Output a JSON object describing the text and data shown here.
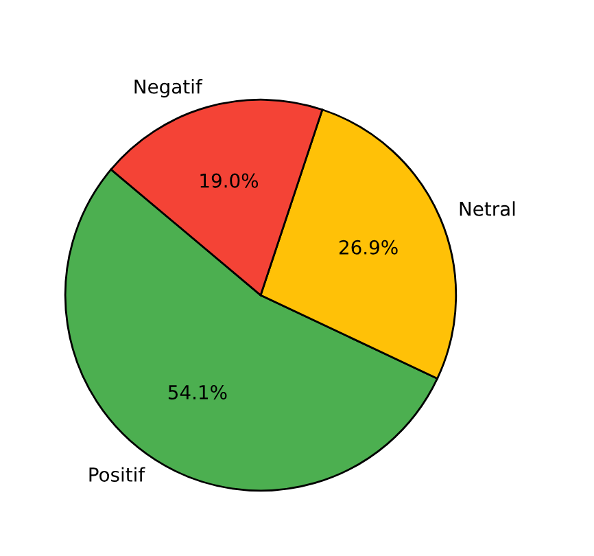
{
  "chart_data": {
    "type": "pie",
    "categories": [
      "Positif",
      "Netral",
      "Negatif"
    ],
    "values": [
      54.1,
      26.9,
      19.0
    ],
    "colors": [
      "#4caf50",
      "#ffc107",
      "#f44336"
    ],
    "value_labels": [
      "54.1%",
      "26.9%",
      "19.0%"
    ]
  }
}
